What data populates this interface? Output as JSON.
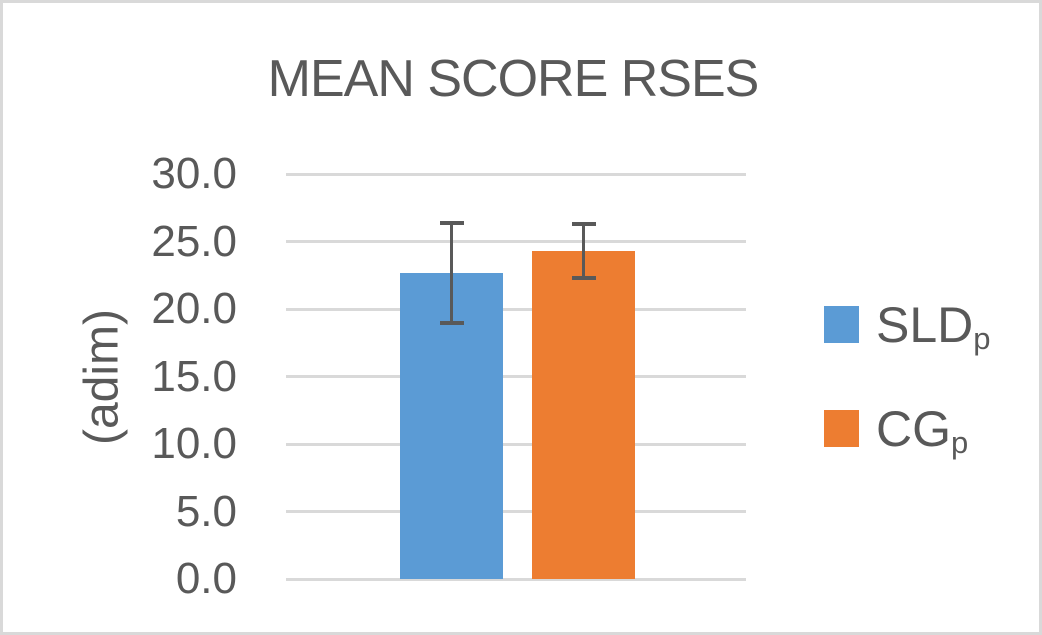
{
  "chart_data": {
    "type": "bar",
    "title": "MEAN SCORE RSES",
    "xlabel": "",
    "ylabel": "(adim)",
    "ylim": [
      0,
      30
    ],
    "ytick_step": 5,
    "ytick_labels": [
      "0.0",
      "5.0",
      "10.0",
      "15.0",
      "20.0",
      "25.0",
      "30.0"
    ],
    "grid": true,
    "legend_position": "right",
    "series": [
      {
        "name": "SLDp",
        "label_main": "SLD",
        "label_sub": "p",
        "value": 22.7,
        "error": 3.7,
        "color": "#5B9BD5"
      },
      {
        "name": "CGp",
        "label_main": "CG",
        "label_sub": "p",
        "value": 24.3,
        "error": 2.0,
        "color": "#ED7D31"
      }
    ],
    "legend_entries": [
      {
        "main": "SLD",
        "sub": "p"
      },
      {
        "main": "CG",
        "sub": "p"
      }
    ],
    "colors": {
      "title_text": "#595959",
      "axis_text": "#595959",
      "gridline": "#D9D9D9",
      "error_bar": "#595959",
      "frame_border": "#D9D9D9",
      "background": "#FFFFFF"
    }
  }
}
